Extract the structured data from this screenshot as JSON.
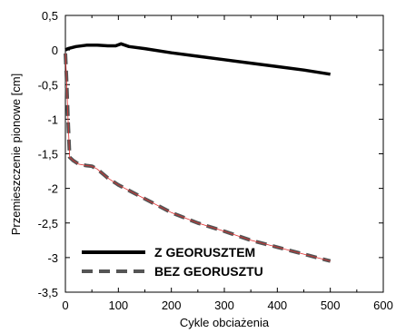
{
  "chart_data": {
    "type": "line",
    "xlabel": "Cykle obciażenia",
    "ylabel": "Przemieszczenie pionowe [cm]",
    "xlim": [
      0,
      600
    ],
    "ylim": [
      -3.5,
      0.5
    ],
    "xticks": [
      0,
      100,
      200,
      300,
      400,
      500,
      600
    ],
    "yticks": [
      0.5,
      0,
      -0.5,
      -1,
      -1.5,
      -2,
      -2.5,
      -3,
      -3.5
    ],
    "x_tick_labels": [
      "0",
      "100",
      "200",
      "300",
      "400",
      "500",
      "600"
    ],
    "y_tick_labels": [
      "0,5",
      "0",
      "-0,5",
      "-1",
      "-1,5",
      "-2",
      "-2,5",
      "-3",
      "-3,5"
    ],
    "grid": false,
    "legend_position": "bottom-left",
    "series": [
      {
        "name": "Z GEORUSZTEM",
        "style": "solid",
        "color": "#000000",
        "x": [
          0,
          5,
          10,
          20,
          40,
          60,
          80,
          95,
          105,
          120,
          150,
          200,
          250,
          300,
          350,
          400,
          450,
          500
        ],
        "y": [
          0.0,
          0.02,
          0.03,
          0.05,
          0.07,
          0.07,
          0.06,
          0.06,
          0.09,
          0.05,
          0.02,
          -0.04,
          -0.09,
          -0.14,
          -0.19,
          -0.24,
          -0.29,
          -0.35
        ]
      },
      {
        "name": "BEZ GEORUSZTU",
        "style": "dashed",
        "color": "#555555",
        "x": [
          0,
          2,
          5,
          8,
          15,
          25,
          40,
          50,
          60,
          80,
          100,
          150,
          200,
          250,
          300,
          350,
          400,
          450,
          500
        ],
        "y": [
          -0.05,
          -0.4,
          -1.0,
          -1.55,
          -1.6,
          -1.65,
          -1.67,
          -1.68,
          -1.72,
          -1.85,
          -1.95,
          -2.15,
          -2.35,
          -2.5,
          -2.62,
          -2.75,
          -2.85,
          -2.95,
          -3.05
        ]
      }
    ]
  }
}
